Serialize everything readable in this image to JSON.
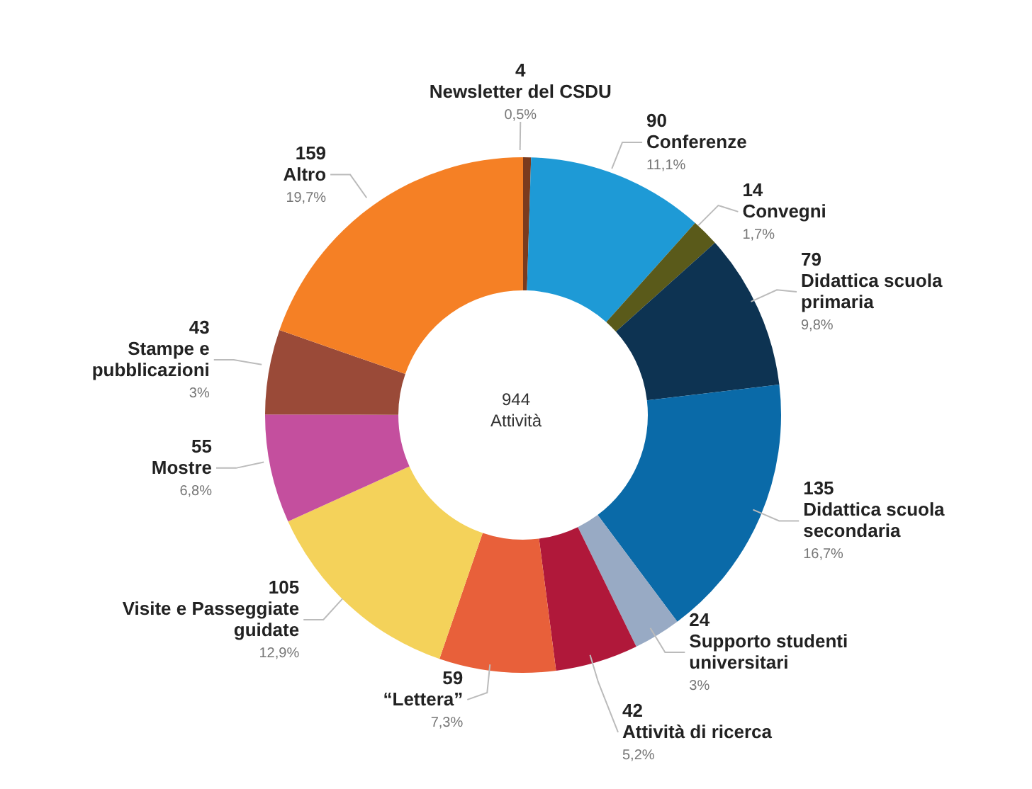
{
  "chart_data": {
    "type": "donut",
    "categories": [
      "Newsletter del CSDU",
      "Conferenze",
      "Convegni",
      "Didattica scuola primaria",
      "Didattica scuola secondaria",
      "Supporto studenti universitari",
      "Attività di ricerca",
      "“Lettera”",
      "Visite e Passeggiate guidate",
      "Mostre",
      "Stampe e pubblicazioni",
      "Altro"
    ],
    "values": [
      4,
      90,
      14,
      79,
      135,
      24,
      42,
      59,
      105,
      55,
      43,
      159
    ],
    "colors": [
      "#7a3b1e",
      "#1e9ad6",
      "#5a5a1a",
      "#0d3352",
      "#0a6aa8",
      "#98aac4",
      "#b0183a",
      "#e8603a",
      "#f4d25a",
      "#c44f9e",
      "#9a4a38",
      "#f58025"
    ],
    "data_labels": true,
    "annotations": [
      "944",
      "Attività",
      {
        "text": "0,5%",
        "x": "Newsletter del CSDU"
      },
      {
        "text": "11,1%",
        "x": "Conferenze"
      },
      {
        "text": "1,7%",
        "x": "Convegni"
      },
      {
        "text": "9,8%",
        "x": "Didattica scuola primaria"
      },
      {
        "text": "16,7%",
        "x": "Didattica scuola secondaria"
      },
      {
        "text": "3%",
        "x": "Supporto studenti universitari"
      },
      {
        "text": "5,2%",
        "x": "Attività di ricerca"
      },
      {
        "text": "7,3%",
        "x": "“Lettera”"
      },
      {
        "text": "12,9%",
        "x": "Visite e Passeggiate guidate"
      },
      {
        "text": "6,8%",
        "x": "Mostre"
      },
      {
        "text": "3%",
        "x": "Stampe e pubblicazioni"
      },
      {
        "text": "19,7%",
        "x": "Altro"
      }
    ]
  }
}
